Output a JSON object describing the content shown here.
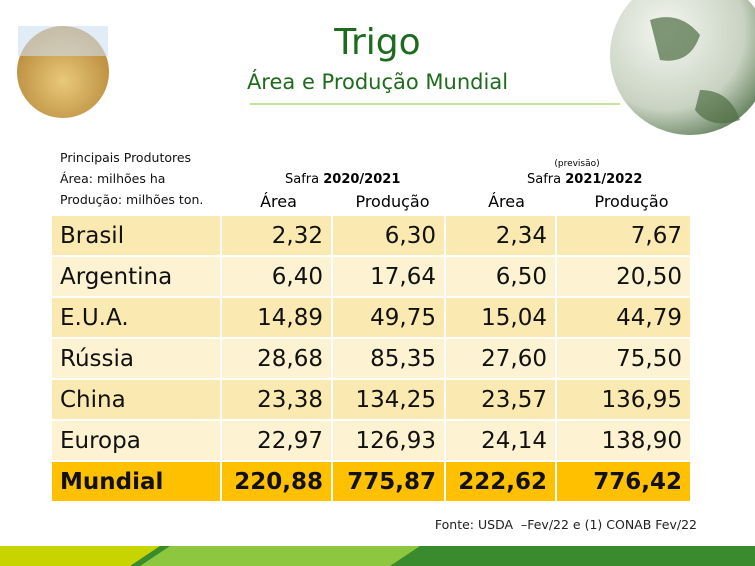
{
  "header": {
    "title": "Trigo",
    "subtitle": "Área e Produção Mundial"
  },
  "notes": [
    "Principais Produtores",
    "Área: milhões ha",
    "Produção: milhões ton."
  ],
  "groups": [
    {
      "label": "Safra",
      "season": "2020/2021"
    },
    {
      "note": "(previsão)",
      "label": "Safra",
      "season": "2021/2022"
    }
  ],
  "table": {
    "columns": [
      "Área",
      "Produção",
      "Área",
      "Produção"
    ],
    "rows": [
      [
        "Brasil",
        "2,32",
        "6,30",
        "2,34",
        "7,67"
      ],
      [
        "Argentina",
        "6,40",
        "17,64",
        "6,50",
        "20,50"
      ],
      [
        "E.U.A.",
        "14,89",
        "49,75",
        "15,04",
        "44,79"
      ],
      [
        "Rússia",
        "28,68",
        "85,35",
        "27,60",
        "75,50"
      ],
      [
        "China",
        "23,38",
        "134,25",
        "23,57",
        "136,95"
      ],
      [
        "Europa",
        "22,97",
        "126,93",
        "24,14",
        "138,90"
      ],
      [
        "Mundial",
        "220,88",
        "775,87",
        "222,62",
        "776,42"
      ]
    ]
  },
  "source": "Fonte: USDA  –Fev/22 e (1) CONAB Fev/22"
}
